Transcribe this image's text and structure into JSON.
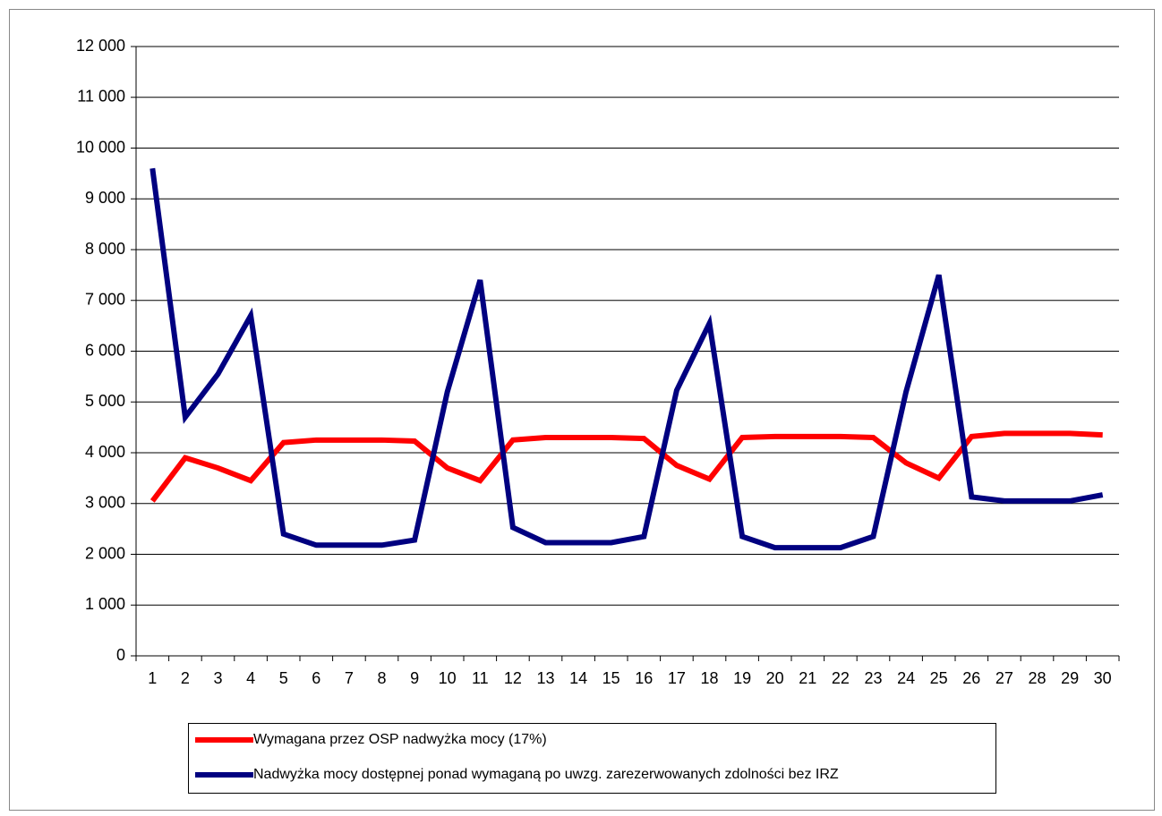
{
  "chart_data": {
    "type": "line",
    "categories": [
      1,
      2,
      3,
      4,
      5,
      6,
      7,
      8,
      9,
      10,
      11,
      12,
      13,
      14,
      15,
      16,
      17,
      18,
      19,
      20,
      21,
      22,
      23,
      24,
      25,
      26,
      27,
      28,
      29,
      30
    ],
    "series": [
      {
        "name": "Wymagana przez OSP nadwyżka mocy (17%)",
        "color": "#ff0000",
        "values": [
          3050,
          3900,
          3700,
          3450,
          4200,
          4250,
          4250,
          4250,
          4230,
          3700,
          3450,
          4250,
          4300,
          4300,
          4300,
          4280,
          3750,
          3480,
          4300,
          4320,
          4320,
          4320,
          4300,
          3800,
          3500,
          4320,
          4380,
          4380,
          4380,
          4350
        ]
      },
      {
        "name": "Nadwyżka mocy dostępnej ponad wymaganą po uwzg. zarezerwowanych zdolności bez IRZ",
        "color": "#000080",
        "values": [
          9600,
          4700,
          5550,
          6700,
          2400,
          2180,
          2180,
          2180,
          2280,
          5200,
          7400,
          2530,
          2230,
          2230,
          2230,
          2350,
          5230,
          6550,
          2350,
          2130,
          2130,
          2130,
          2350,
          5200,
          7500,
          3130,
          3050,
          3050,
          3050,
          3170
        ]
      }
    ],
    "ylim": [
      0,
      12000
    ],
    "yticks": [
      0,
      {
        "value": 1000,
        "label": "1 000"
      },
      {
        "value": 2000,
        "label": "2 000"
      },
      {
        "value": 3000,
        "label": "3 000"
      },
      {
        "value": 4000,
        "label": "4 000"
      },
      {
        "value": 5000,
        "label": "5 000"
      },
      {
        "value": 6000,
        "label": "6 000"
      },
      {
        "value": 7000,
        "label": "7 000"
      },
      {
        "value": 8000,
        "label": "8 000"
      },
      {
        "value": 9000,
        "label": "9 000"
      },
      {
        "value": 10000,
        "label": "10 000"
      },
      {
        "value": 11000,
        "label": "11 000"
      },
      {
        "value": 12000,
        "label": "12 000"
      }
    ],
    "grid": true,
    "legend": "bottom"
  }
}
